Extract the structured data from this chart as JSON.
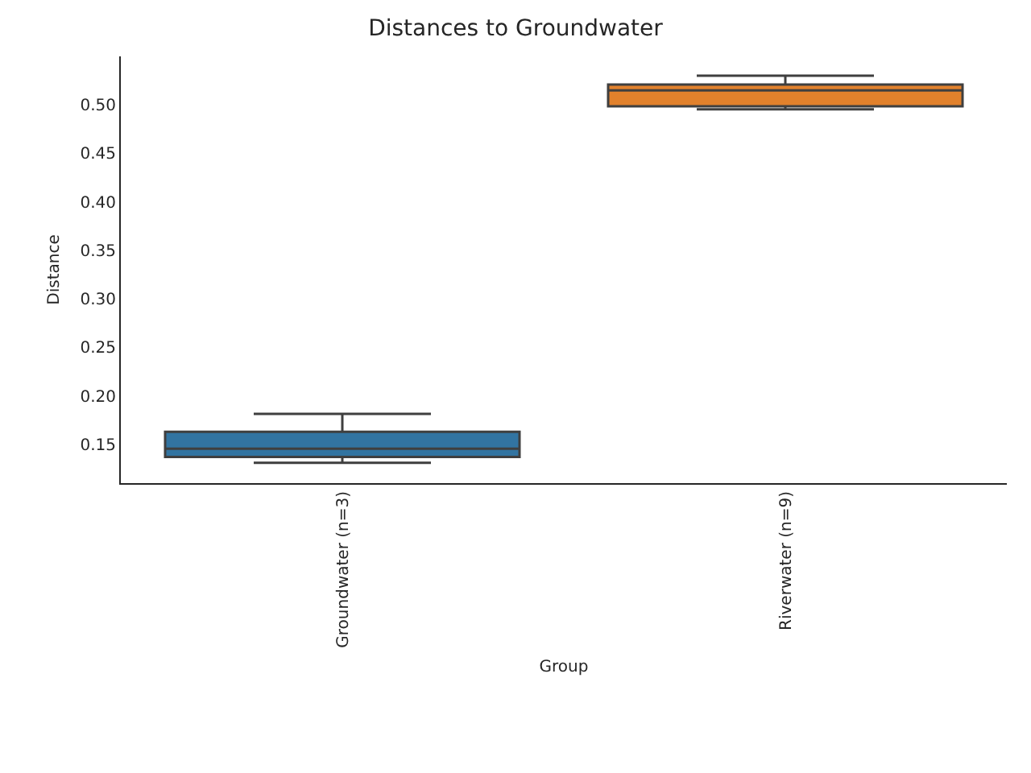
{
  "chart_data": {
    "type": "box",
    "title": "Distances to Groundwater",
    "xlabel": "Group",
    "ylabel": "Distance",
    "categories": [
      "Groundwater (n=3)",
      "Riverwater (n=9)"
    ],
    "colors": [
      "#3274a1",
      "#e1812c"
    ],
    "boxes": [
      {
        "low": 0.131,
        "q1": 0.137,
        "median": 0.1455,
        "q3": 0.163,
        "high": 0.1815
      },
      {
        "low": 0.4955,
        "q1": 0.4985,
        "median": 0.515,
        "q3": 0.521,
        "high": 0.53
      }
    ],
    "ylim": [
      0.11,
      0.55
    ],
    "yticks": [
      0.15,
      {
        "value": 0.2,
        "label": "0.20"
      },
      0.25,
      {
        "value": 0.3,
        "label": "0.30"
      },
      0.35,
      {
        "value": 0.4,
        "label": "0.40"
      },
      0.45,
      {
        "value": 0.5,
        "label": "0.50"
      }
    ],
    "grid": false
  }
}
